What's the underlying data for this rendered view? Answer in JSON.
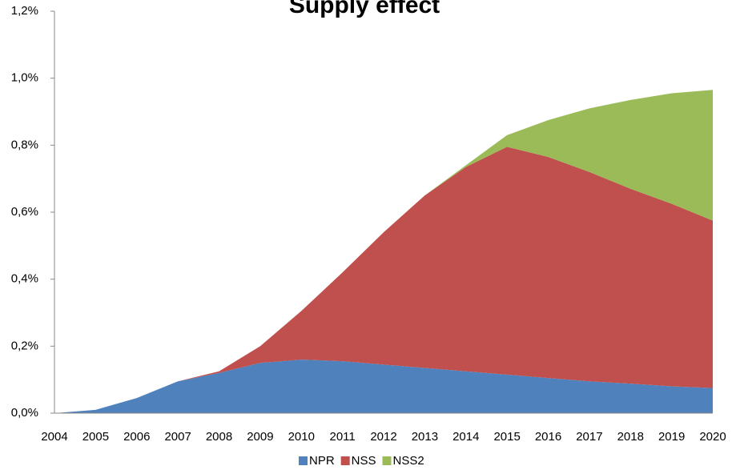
{
  "chart_data": {
    "type": "stacked_area",
    "title": "Supply effect",
    "categories": [
      "2004",
      "2005",
      "2006",
      "2007",
      "2008",
      "2009",
      "2010",
      "2011",
      "2012",
      "2013",
      "2014",
      "2015",
      "2016",
      "2017",
      "2018",
      "2019",
      "2020"
    ],
    "series": [
      {
        "name": "NPR",
        "color": "#4f81bd",
        "values": [
          0,
          0.01,
          0.045,
          0.095,
          0.12,
          0.15,
          0.16,
          0.155,
          0.145,
          0.135,
          0.125,
          0.115,
          0.105,
          0.095,
          0.088,
          0.08,
          0.075
        ]
      },
      {
        "name": "NSS",
        "color": "#c0504d",
        "values": [
          0,
          0,
          0,
          0,
          0.005,
          0.05,
          0.145,
          0.265,
          0.395,
          0.515,
          0.61,
          0.68,
          0.66,
          0.625,
          0.582,
          0.545,
          0.5
        ]
      },
      {
        "name": "NSS2",
        "color": "#9bbb59",
        "values": [
          0,
          0,
          0,
          0,
          0,
          0,
          0,
          0,
          0,
          0,
          0.005,
          0.035,
          0.11,
          0.19,
          0.265,
          0.33,
          0.39
        ]
      }
    ],
    "ylim": [
      0,
      1.2
    ],
    "yticks": [
      {
        "value": 0,
        "label": "0,0%"
      },
      {
        "value": 0.2,
        "label": "0,2%"
      },
      {
        "value": 0.4,
        "label": "0,4%"
      },
      {
        "value": 0.6,
        "label": "0,6%"
      },
      {
        "value": 0.8,
        "label": "0,8%"
      },
      {
        "value": 1.0,
        "label": "1,0%"
      },
      {
        "value": 1.2,
        "label": "1,2%"
      }
    ],
    "legend": "bottom"
  }
}
